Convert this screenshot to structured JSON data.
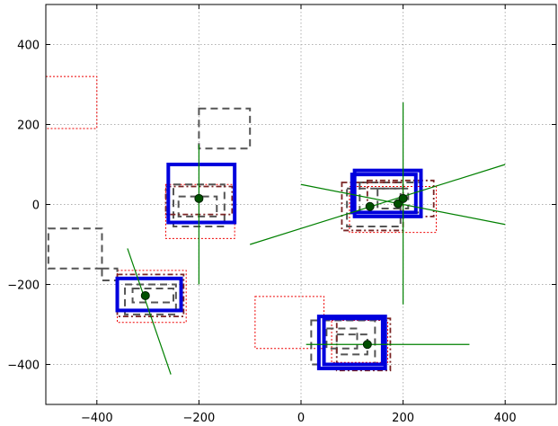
{
  "chart_data": {
    "type": "scatter",
    "title": "",
    "xlabel": "",
    "ylabel": "",
    "xlim": [
      -500,
      500
    ],
    "ylim": [
      -500,
      500
    ],
    "grid": true,
    "x_ticks": [
      -400,
      -200,
      0,
      200,
      400
    ],
    "y_ticks": [
      400,
      200,
      0,
      -200,
      -400
    ],
    "x_tick_labels": [
      "−400",
      "−200",
      "0",
      "200",
      "400"
    ],
    "y_tick_labels": [
      "400",
      "200",
      "0",
      "−200",
      "−400"
    ],
    "colors": {
      "solid_box": "#0000dd",
      "dashed_box": "#555555",
      "dashdot_box": "#7a2525",
      "dotted_box": "#ee0000",
      "line": "#008000",
      "point": "#005000"
    },
    "boxes": [
      {
        "style": "dotted",
        "x0": -500,
        "y0": 190,
        "x1": -400,
        "y1": 320
      },
      {
        "style": "dashed",
        "x0": -200,
        "y0": 140,
        "x1": -100,
        "y1": 240
      },
      {
        "style": "dashed",
        "x0": -495,
        "y0": -160,
        "x1": -390,
        "y1": -60
      },
      {
        "style": "dashed",
        "x0": -390,
        "y0": -190,
        "x1": -360,
        "y1": -160
      },
      {
        "style": "solid",
        "x0": -260,
        "y0": -45,
        "x1": -130,
        "y1": 100
      },
      {
        "style": "dashdot",
        "x0": -265,
        "y0": -25,
        "x1": -135,
        "y1": 45
      },
      {
        "style": "dotted",
        "x0": -265,
        "y0": -85,
        "x1": -130,
        "y1": 50
      },
      {
        "style": "dashed",
        "x0": -250,
        "y0": -55,
        "x1": -150,
        "y1": 50
      },
      {
        "style": "dashed",
        "x0": -240,
        "y0": -30,
        "x1": -165,
        "y1": 20
      },
      {
        "style": "solid",
        "x0": -360,
        "y0": -265,
        "x1": -235,
        "y1": -185
      },
      {
        "style": "dotted",
        "x0": -360,
        "y0": -295,
        "x1": -225,
        "y1": -165
      },
      {
        "style": "dashdot",
        "x0": -360,
        "y0": -280,
        "x1": -230,
        "y1": -175
      },
      {
        "style": "dashed",
        "x0": -345,
        "y0": -275,
        "x1": -245,
        "y1": -200
      },
      {
        "style": "dashed",
        "x0": -330,
        "y0": -245,
        "x1": -250,
        "y1": -210
      },
      {
        "style": "solid",
        "x0": 105,
        "y0": -30,
        "x1": 235,
        "y1": 85
      },
      {
        "style": "solid",
        "x0": 100,
        "y0": -20,
        "x1": 225,
        "y1": 75
      },
      {
        "style": "dashdot",
        "x0": 80,
        "y0": -65,
        "x1": 200,
        "y1": 55
      },
      {
        "style": "dashdot",
        "x0": 130,
        "y0": -30,
        "x1": 260,
        "y1": 60
      },
      {
        "style": "dotted",
        "x0": 95,
        "y0": -70,
        "x1": 265,
        "y1": 45
      },
      {
        "style": "dashed",
        "x0": 90,
        "y0": -55,
        "x1": 195,
        "y1": 40
      },
      {
        "style": "dashed",
        "x0": 115,
        "y0": -20,
        "x1": 235,
        "y1": 55
      },
      {
        "style": "dashed",
        "x0": 150,
        "y0": -10,
        "x1": 210,
        "y1": 40
      },
      {
        "style": "dotted",
        "x0": -90,
        "y0": -360,
        "x1": 45,
        "y1": -230
      },
      {
        "style": "solid",
        "x0": 35,
        "y0": -410,
        "x1": 165,
        "y1": -280
      },
      {
        "style": "solid",
        "x0": 45,
        "y0": -400,
        "x1": 160,
        "y1": -285
      },
      {
        "style": "dashdot",
        "x0": 70,
        "y0": -415,
        "x1": 175,
        "y1": -285
      },
      {
        "style": "dotted",
        "x0": 60,
        "y0": -395,
        "x1": 170,
        "y1": -290
      },
      {
        "style": "dashed",
        "x0": 20,
        "y0": -400,
        "x1": 145,
        "y1": -290
      },
      {
        "style": "dashed",
        "x0": 70,
        "y0": -375,
        "x1": 130,
        "y1": -325
      },
      {
        "style": "dashed",
        "x0": 50,
        "y0": -360,
        "x1": 110,
        "y1": -310
      }
    ],
    "lines": [
      {
        "x0": -200,
        "y0": 150,
        "x1": -200,
        "y1": -200
      },
      {
        "x0": -340,
        "y0": -110,
        "x1": -255,
        "y1": -425
      },
      {
        "x0": -100,
        "y0": -100,
        "x1": 400,
        "y1": 100
      },
      {
        "x0": 0,
        "y0": 50,
        "x1": 400,
        "y1": -50
      },
      {
        "x0": 200,
        "y0": 255,
        "x1": 200,
        "y1": -250
      },
      {
        "x0": 10,
        "y0": -350,
        "x1": 330,
        "y1": -350
      }
    ],
    "points": [
      {
        "x": -200,
        "y": 15
      },
      {
        "x": -305,
        "y": -228
      },
      {
        "x": 135,
        "y": -5
      },
      {
        "x": 190,
        "y": 2
      },
      {
        "x": 200,
        "y": 15
      },
      {
        "x": 130,
        "y": -350
      }
    ]
  }
}
